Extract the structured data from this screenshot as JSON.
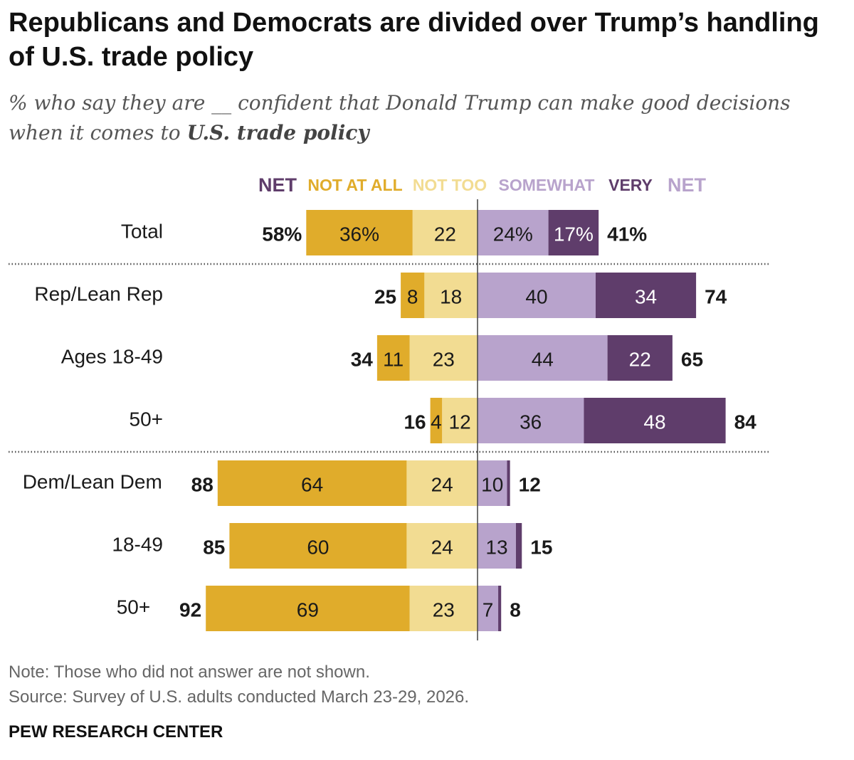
{
  "title": "Republicans and Democrats are divided over Trump’s handling of U.S. trade policy",
  "subtitle": {
    "before": "% who say they are __ confident that Donald Trump can make good decisions when it comes to ",
    "bold": "U.S. trade policy"
  },
  "colors": {
    "not_at_all": "#e0ac2b",
    "not_too": "#f2dc92",
    "somewhat": "#b8a3cc",
    "very": "#5f3d6b",
    "net_left_header": "#5f3d6b",
    "net_right_header": "#b8a3cc"
  },
  "chart_data": {
    "type": "bar",
    "orientation": "horizontal-diverging",
    "headers": [
      {
        "key": "net_left",
        "label": "NET"
      },
      {
        "key": "not_at_all",
        "label": "NOT AT ALL"
      },
      {
        "key": "not_too",
        "label": "NOT TOO"
      },
      {
        "key": "somewhat",
        "label": "SOMEWHAT"
      },
      {
        "key": "very",
        "label": "VERY"
      },
      {
        "key": "net_right",
        "label": "NET"
      }
    ],
    "rows": [
      {
        "label": "Total",
        "not_at_all": 36,
        "not_too": 22,
        "somewhat": 24,
        "very": 17,
        "net_left": 58,
        "net_right": 41,
        "not_at_all_label": "36%",
        "not_too_label": "22",
        "somewhat_label": "24%",
        "very_label": "17%",
        "net_left_label": "58%",
        "net_right_label": "41%"
      },
      {
        "label": "Rep/Lean Rep",
        "not_at_all": 8,
        "not_too": 18,
        "somewhat": 40,
        "very": 34,
        "net_left": 25,
        "net_right": 74,
        "not_at_all_label": "8",
        "not_too_label": "18",
        "somewhat_label": "40",
        "very_label": "34",
        "net_left_label": "25",
        "net_right_label": "74"
      },
      {
        "label": "Ages 18-49",
        "not_at_all": 11,
        "not_too": 23,
        "somewhat": 44,
        "very": 22,
        "net_left": 34,
        "net_right": 65,
        "not_at_all_label": "11",
        "not_too_label": "23",
        "somewhat_label": "44",
        "very_label": "22",
        "net_left_label": "34",
        "net_right_label": "65"
      },
      {
        "label": "50+",
        "not_at_all": 4,
        "not_too": 12,
        "somewhat": 36,
        "very": 48,
        "net_left": 16,
        "net_right": 84,
        "not_at_all_label": "4",
        "not_too_label": "12",
        "somewhat_label": "36",
        "very_label": "48",
        "net_left_label": "16",
        "net_right_label": "84"
      },
      {
        "label": "Dem/Lean Dem",
        "not_at_all": 64,
        "not_too": 24,
        "somewhat": 10,
        "very": 1,
        "net_left": 88,
        "net_right": 12,
        "not_at_all_label": "64",
        "not_too_label": "24",
        "somewhat_label": "10",
        "very_label": "",
        "net_left_label": "88",
        "net_right_label": "12"
      },
      {
        "label": "18-49",
        "not_at_all": 60,
        "not_too": 24,
        "somewhat": 13,
        "very": 2,
        "net_left": 85,
        "net_right": 15,
        "not_at_all_label": "60",
        "not_too_label": "24",
        "somewhat_label": "13",
        "very_label": "",
        "net_left_label": "85",
        "net_right_label": "15"
      },
      {
        "label": "50+",
        "not_at_all": 69,
        "not_too": 23,
        "somewhat": 7,
        "very": 1,
        "net_left": 92,
        "net_right": 8,
        "not_at_all_label": "69",
        "not_too_label": "23",
        "somewhat_label": "7",
        "very_label": "",
        "net_left_label": "92",
        "net_right_label": "8"
      }
    ],
    "group_separators_after_rows": [
      0,
      3
    ],
    "grid": false,
    "legend": "column headers above bars"
  },
  "notes": {
    "note": "Note: Those who did not answer are not shown.",
    "source": "Source: Survey of U.S. adults conducted March 23-29, 2026."
  },
  "brand": "PEW RESEARCH CENTER"
}
